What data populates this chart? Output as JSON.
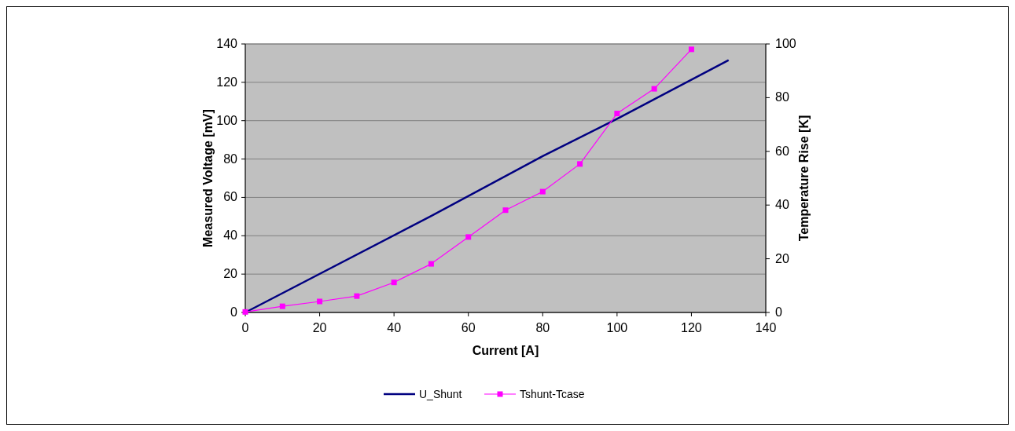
{
  "chart_data": {
    "type": "line",
    "xlabel": "Current [A]",
    "ylabel": "Measured Voltage [mV]",
    "y2label": "Temperature Rise [K]",
    "xlim": [
      0,
      140
    ],
    "xticks": [
      0,
      20,
      40,
      60,
      80,
      100,
      120,
      140
    ],
    "ylim": [
      0,
      140
    ],
    "yticks": [
      0,
      20,
      40,
      60,
      80,
      100,
      120,
      140
    ],
    "y2lim": [
      0,
      100
    ],
    "y2ticks": [
      0,
      20,
      40,
      60,
      80,
      100
    ],
    "grid": "y",
    "legend": "bottom",
    "series": [
      {
        "name": "U_Shunt",
        "color": "#000080",
        "marker": "none",
        "x": [
          0,
          50,
          80,
          100,
          130
        ],
        "values": [
          0,
          50.3,
          81.5,
          101,
          131.6
        ]
      },
      {
        "name": "Tshunt-Tcase",
        "color": "#ff00ff",
        "marker": "square",
        "axis": "y2",
        "x": [
          0,
          10,
          20,
          30,
          40,
          50,
          60,
          70,
          80,
          90,
          100,
          110,
          120
        ],
        "values": [
          0.2,
          2.3,
          4.1,
          6.1,
          11.2,
          18.1,
          28.1,
          38.1,
          45,
          55.3,
          74.1,
          83.3,
          98
        ]
      }
    ]
  }
}
